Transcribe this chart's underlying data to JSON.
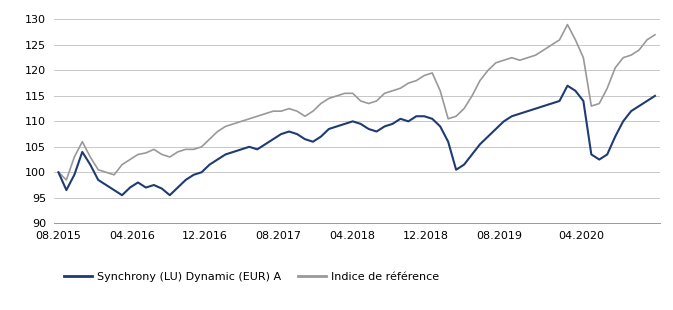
{
  "ylim": [
    90,
    132
  ],
  "yticks": [
    90,
    95,
    100,
    105,
    110,
    115,
    120,
    125,
    130
  ],
  "xtick_labels": [
    "08.2015",
    "04.2016",
    "12.2016",
    "08.2017",
    "04.2018",
    "12.2018",
    "08.2019",
    "04.2020"
  ],
  "legend1_label": "Synchrony (LU) Dynamic (EUR) A",
  "legend2_label": "Indice de référence",
  "line1_color": "#1f3b73",
  "line2_color": "#999999",
  "background_color": "#ffffff",
  "grid_color": "#c8c8c8",
  "fund_data": [
    100.0,
    96.5,
    99.5,
    104.0,
    101.5,
    98.5,
    97.5,
    96.5,
    95.5,
    97.0,
    98.0,
    97.0,
    97.5,
    96.8,
    95.5,
    97.0,
    98.5,
    99.5,
    100.0,
    101.5,
    102.5,
    103.5,
    104.0,
    104.5,
    105.0,
    104.5,
    105.5,
    106.5,
    107.5,
    108.0,
    107.5,
    106.5,
    106.0,
    107.0,
    108.5,
    109.0,
    109.5,
    110.0,
    109.5,
    108.5,
    108.0,
    109.0,
    109.5,
    110.5,
    110.0,
    111.0,
    111.0,
    110.5,
    109.0,
    106.0,
    100.5,
    101.5,
    103.5,
    105.5,
    107.0,
    108.5,
    110.0,
    111.0,
    111.5,
    112.0,
    112.5,
    113.0,
    113.5,
    114.0,
    117.0,
    116.0,
    114.0,
    103.5,
    102.5,
    103.5,
    107.0,
    110.0,
    112.0,
    113.0,
    114.0,
    115.0
  ],
  "benchmark_data": [
    100.0,
    98.5,
    103.0,
    106.0,
    103.0,
    100.5,
    100.0,
    99.5,
    101.5,
    102.5,
    103.5,
    103.8,
    104.5,
    103.5,
    103.0,
    104.0,
    104.5,
    104.5,
    105.0,
    106.5,
    108.0,
    109.0,
    109.5,
    110.0,
    110.5,
    111.0,
    111.5,
    112.0,
    112.0,
    112.5,
    112.0,
    111.0,
    112.0,
    113.5,
    114.5,
    115.0,
    115.5,
    115.5,
    114.0,
    113.5,
    114.0,
    115.5,
    116.0,
    116.5,
    117.5,
    118.0,
    119.0,
    119.5,
    116.0,
    110.5,
    111.0,
    112.5,
    115.0,
    118.0,
    120.0,
    121.5,
    122.0,
    122.5,
    122.0,
    122.5,
    123.0,
    124.0,
    125.0,
    126.0,
    129.0,
    126.0,
    122.5,
    113.0,
    113.5,
    116.5,
    120.5,
    122.5,
    123.0,
    124.0,
    126.0,
    127.0
  ]
}
